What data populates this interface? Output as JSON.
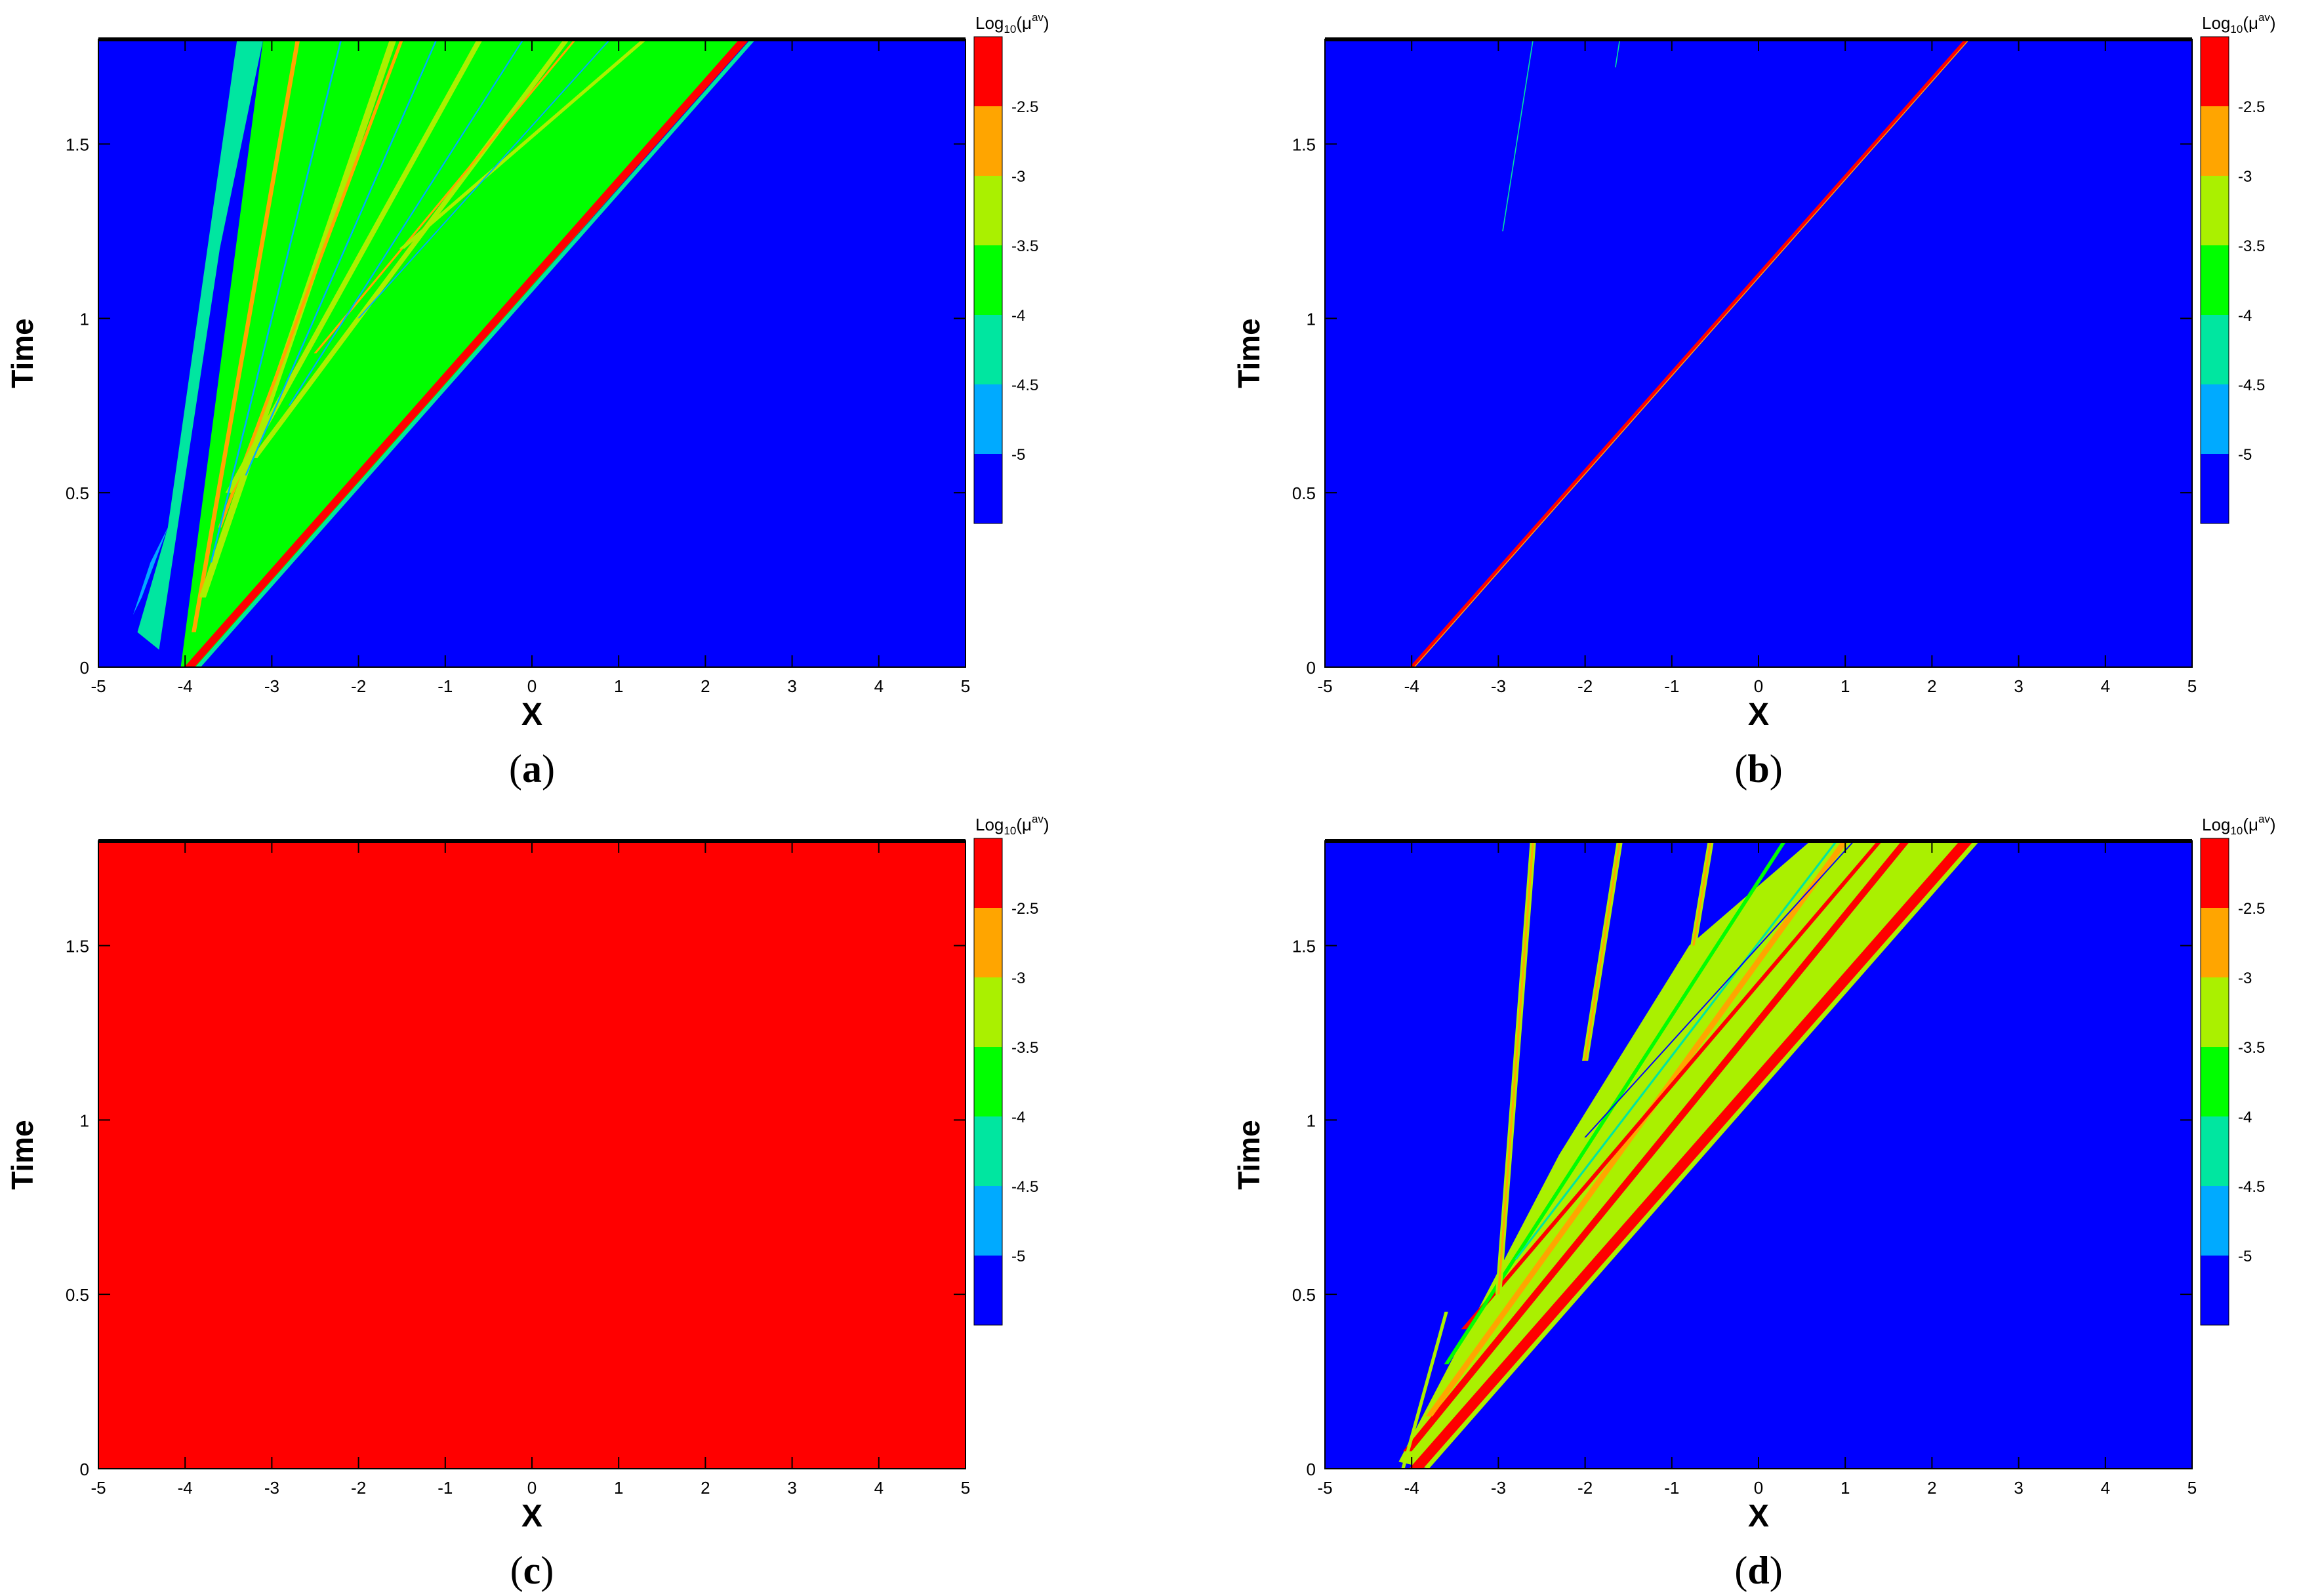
{
  "figure": {
    "colorbar": {
      "title_base": "Log",
      "title_sub": "10",
      "title_paren_open": "(μ",
      "title_sup": "av",
      "title_paren_close": ")",
      "levels": [
        {
          "label": "-2.5",
          "color": "#ff0000"
        },
        {
          "label": "-3",
          "color": "#ffa500"
        },
        {
          "label": "-3.5",
          "color": "#aaf000"
        },
        {
          "label": "-4",
          "color": "#00ff00"
        },
        {
          "label": "-4.5",
          "color": "#00e6a0"
        },
        {
          "label": "-5",
          "color": "#00aaff"
        },
        {
          "label": "",
          "color": "#0000ff"
        }
      ]
    }
  },
  "chart_data": [
    {
      "type": "heatmap",
      "panel": "a",
      "caption_open": "(",
      "caption_letter": "a",
      "caption_close": ")",
      "xlabel": "X",
      "ylabel": "Time",
      "xlim": [
        -5,
        5
      ],
      "ylim": [
        0,
        1.8
      ],
      "xticks": [
        "-5",
        "-4",
        "-3",
        "-2",
        "-1",
        "0",
        "1",
        "2",
        "3",
        "4",
        "5"
      ],
      "yticks": [
        "0",
        "0.5",
        "1",
        "1.5"
      ],
      "background_color": "#0000ff",
      "regions": [
        {
          "name": "fan-green",
          "color": "#00ff00",
          "polygon": [
            [
              -4.05,
              0
            ],
            [
              -3.1,
              1.8
            ],
            [
              2.5,
              1.8
            ],
            [
              -3.85,
              0
            ]
          ]
        },
        {
          "name": "fan-edge-cyan",
          "color": "#00e6a0",
          "polygon": [
            [
              -4.3,
              0.05
            ],
            [
              -3.6,
              1.2
            ],
            [
              -3.1,
              1.8
            ],
            [
              -3.4,
              1.8
            ],
            [
              -4.2,
              0.4
            ],
            [
              -4.55,
              0.1
            ]
          ]
        },
        {
          "name": "left-lightblue",
          "color": "#00aaff",
          "polygon": [
            [
              -4.6,
              0.15
            ],
            [
              -4.5,
              0.2
            ],
            [
              -4.2,
              0.4
            ],
            [
              -4.4,
              0.3
            ]
          ]
        }
      ],
      "bands": [
        {
          "name": "shock",
          "color": "#ff0000",
          "points": [
            [
              -3.95,
              0
            ],
            [
              2.45,
              1.8
            ]
          ],
          "width": 0.12
        },
        {
          "name": "shock-edge",
          "color": "#00e6a0",
          "points": [
            [
              -3.85,
              0
            ],
            [
              2.55,
              1.8
            ]
          ],
          "width": 0.06
        },
        {
          "name": "wave-1",
          "color": "#ffa500",
          "points": [
            [
              -3.9,
              0.1
            ],
            [
              -2.7,
              1.8
            ]
          ],
          "width": 0.05
        },
        {
          "name": "wave-2",
          "color": "#aaf000",
          "points": [
            [
              -3.8,
              0.2
            ],
            [
              -1.6,
              1.8
            ]
          ],
          "width": 0.08
        },
        {
          "name": "wave-3",
          "color": "#ffa500",
          "points": [
            [
              -3.6,
              0.4
            ],
            [
              -1.5,
              1.8
            ]
          ],
          "width": 0.04
        },
        {
          "name": "wave-4",
          "color": "#aaf000",
          "points": [
            [
              -3.5,
              0.5
            ],
            [
              -0.6,
              1.8
            ]
          ],
          "width": 0.07
        },
        {
          "name": "wave-5",
          "color": "#aaf000",
          "points": [
            [
              -3.2,
              0.6
            ],
            [
              0.4,
              1.8
            ]
          ],
          "width": 0.07
        },
        {
          "name": "wave-6",
          "color": "#ffa500",
          "points": [
            [
              -2.5,
              0.9
            ],
            [
              0.5,
              1.8
            ]
          ],
          "width": 0.03
        },
        {
          "name": "wave-7",
          "color": "#aaf000",
          "points": [
            [
              -1.5,
              1.2
            ],
            [
              1.3,
              1.8
            ]
          ],
          "width": 0.06
        },
        {
          "name": "blue-streak-1",
          "color": "#00aaff",
          "points": [
            [
              -3.7,
              0.3
            ],
            [
              -2.2,
              1.8
            ]
          ],
          "width": 0.02
        },
        {
          "name": "blue-streak-2",
          "color": "#00aaff",
          "points": [
            [
              -3.3,
              0.55
            ],
            [
              -1.1,
              1.8
            ]
          ],
          "width": 0.02
        },
        {
          "name": "blue-streak-3",
          "color": "#00aaff",
          "points": [
            [
              -2.8,
              0.75
            ],
            [
              -0.1,
              1.8
            ]
          ],
          "width": 0.02
        },
        {
          "name": "blue-streak-4",
          "color": "#00aaff",
          "points": [
            [
              -2.0,
              1.0
            ],
            [
              0.9,
              1.8
            ]
          ],
          "width": 0.02
        }
      ]
    },
    {
      "type": "heatmap",
      "panel": "b",
      "caption_open": "(",
      "caption_letter": "b",
      "caption_close": ")",
      "xlabel": "X",
      "ylabel": "Time",
      "xlim": [
        -5,
        5
      ],
      "ylim": [
        0,
        1.8
      ],
      "xticks": [
        "-5",
        "-4",
        "-3",
        "-2",
        "-1",
        "0",
        "1",
        "2",
        "3",
        "4",
        "5"
      ],
      "yticks": [
        "0",
        "0.5",
        "1",
        "1.5"
      ],
      "background_color": "#0000ff",
      "regions": [],
      "bands": [
        {
          "name": "shock",
          "color": "#ff0000",
          "points": [
            [
              -4.0,
              0
            ],
            [
              2.4,
              1.8
            ]
          ],
          "width": 0.05
        },
        {
          "name": "shock-edge",
          "color": "#ffa500",
          "points": [
            [
              -3.97,
              0
            ],
            [
              2.43,
              1.8
            ]
          ],
          "width": 0.015
        },
        {
          "name": "faint-1",
          "color": "#00e6a0",
          "points": [
            [
              -2.95,
              1.25
            ],
            [
              -2.6,
              1.8
            ]
          ],
          "width": 0.012
        },
        {
          "name": "faint-2",
          "color": "#00e6a0",
          "points": [
            [
              -1.65,
              1.72
            ],
            [
              -1.6,
              1.8
            ]
          ],
          "width": 0.012
        }
      ]
    },
    {
      "type": "heatmap",
      "panel": "c",
      "caption_open": "(",
      "caption_letter": "c",
      "caption_close": ")",
      "xlabel": "X",
      "ylabel": "Time",
      "xlim": [
        -5,
        5
      ],
      "ylim": [
        0,
        1.8
      ],
      "xticks": [
        "-5",
        "-4",
        "-3",
        "-2",
        "-1",
        "0",
        "1",
        "2",
        "3",
        "4",
        "5"
      ],
      "yticks": [
        "0",
        "0.5",
        "1",
        "1.5"
      ],
      "background_color": "#ff0000",
      "regions": [],
      "bands": []
    },
    {
      "type": "heatmap",
      "panel": "d",
      "caption_open": "(",
      "caption_letter": "d",
      "caption_close": ")",
      "xlabel": "X",
      "ylabel": "Time",
      "xlim": [
        -5,
        5
      ],
      "ylim": [
        0,
        1.8
      ],
      "xticks": [
        "-5",
        "-4",
        "-3",
        "-2",
        "-1",
        "0",
        "1",
        "2",
        "3",
        "4",
        "5"
      ],
      "yticks": [
        "0",
        "0.5",
        "1",
        "1.5"
      ],
      "background_color": "#0000ff",
      "regions": [
        {
          "name": "fan-mixed",
          "color": "#aaf000",
          "polygon": [
            [
              -4.15,
              0.02
            ],
            [
              -2.3,
              0.9
            ],
            [
              -0.8,
              1.5
            ],
            [
              0.6,
              1.8
            ],
            [
              2.55,
              1.8
            ],
            [
              -3.8,
              0
            ]
          ]
        }
      ],
      "bands": [
        {
          "name": "shock-main",
          "color": "#ff0000",
          "points": [
            [
              -3.95,
              0
            ],
            [
              2.4,
              1.8
            ]
          ],
          "width": 0.16
        },
        {
          "name": "shock-2",
          "color": "#ff0000",
          "points": [
            [
              -4.05,
              0.05
            ],
            [
              1.7,
              1.8
            ]
          ],
          "width": 0.1
        },
        {
          "name": "shock-3",
          "color": "#ffa500",
          "points": [
            [
              -3.8,
              0.15
            ],
            [
              1.0,
              1.8
            ]
          ],
          "width": 0.08
        },
        {
          "name": "shock-4",
          "color": "#ff0000",
          "points": [
            [
              -3.4,
              0.4
            ],
            [
              1.4,
              1.8
            ]
          ],
          "width": 0.06
        },
        {
          "name": "inner-green",
          "color": "#00ff00",
          "points": [
            [
              -3.6,
              0.3
            ],
            [
              0.3,
              1.8
            ]
          ],
          "width": 0.05
        },
        {
          "name": "inner-cyan",
          "color": "#00e6a0",
          "points": [
            [
              -2.8,
              0.6
            ],
            [
              0.9,
              1.8
            ]
          ],
          "width": 0.03
        },
        {
          "name": "inner-blue",
          "color": "#0000ff",
          "points": [
            [
              -2.0,
              0.95
            ],
            [
              1.1,
              1.8
            ]
          ],
          "width": 0.02
        },
        {
          "name": "streak-1",
          "color": "#aaf000",
          "points": [
            [
              -3.0,
              0.5
            ],
            [
              -2.6,
              1.8
            ]
          ],
          "width": 0.07
        },
        {
          "name": "streak-1-core",
          "color": "#ffa500",
          "points": [
            [
              -3.0,
              0.5
            ],
            [
              -2.6,
              1.8
            ]
          ],
          "width": 0.025
        },
        {
          "name": "streak-2",
          "color": "#aaf000",
          "points": [
            [
              -2.0,
              1.17
            ],
            [
              -1.6,
              1.8
            ]
          ],
          "width": 0.07
        },
        {
          "name": "streak-2-core",
          "color": "#ffa500",
          "points": [
            [
              -2.0,
              1.17
            ],
            [
              -1.6,
              1.8
            ]
          ],
          "width": 0.025
        },
        {
          "name": "streak-3",
          "color": "#aaf000",
          "points": [
            [
              -0.75,
              1.5
            ],
            [
              -0.55,
              1.8
            ]
          ],
          "width": 0.07
        },
        {
          "name": "streak-3-core",
          "color": "#ffa500",
          "points": [
            [
              -0.75,
              1.5
            ],
            [
              -0.55,
              1.8
            ]
          ],
          "width": 0.025
        },
        {
          "name": "base-left",
          "color": "#aaf000",
          "points": [
            [
              -4.1,
              0.0
            ],
            [
              -3.6,
              0.45
            ]
          ],
          "width": 0.04
        }
      ]
    }
  ]
}
